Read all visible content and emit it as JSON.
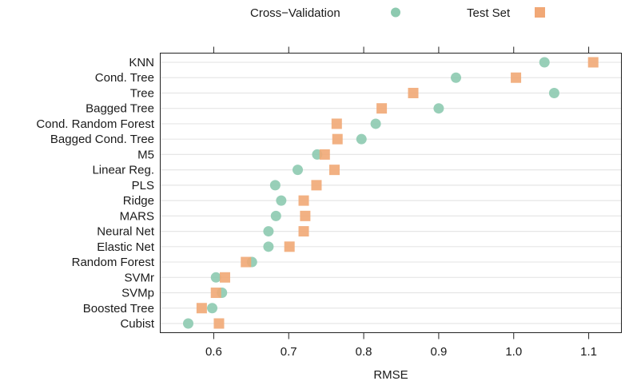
{
  "chart_data": {
    "type": "scatter",
    "title": "",
    "xlabel": "RMSE",
    "ylabel": "",
    "xlim": [
      0.5287,
      1.1436
    ],
    "xticks": [
      0.6,
      0.7,
      0.8,
      0.9,
      1.0,
      1.1
    ],
    "xtick_labels": [
      "0.6",
      "0.7",
      "0.8",
      "0.9",
      "1.0",
      "1.1"
    ],
    "grid": "horizontal",
    "legend_position": "top",
    "categories": [
      "KNN",
      "Cond. Tree",
      "Tree",
      "Bagged Tree",
      "Cond. Random Forest",
      "Bagged Cond. Tree",
      "M5",
      "Linear Reg.",
      "PLS",
      "Ridge",
      "MARS",
      "Neural Net",
      "Elastic Net",
      "Random Forest",
      "SVMr",
      "SVMp",
      "Boosted Tree",
      "Cubist"
    ],
    "series": [
      {
        "name": "Cross−Validation",
        "marker": "circle",
        "color": "#8dcab0",
        "values": [
          1.041,
          0.923,
          1.054,
          0.9,
          0.816,
          0.797,
          0.738,
          0.712,
          0.682,
          0.69,
          0.683,
          0.673,
          0.673,
          0.651,
          0.603,
          0.611,
          0.598,
          0.566
        ]
      },
      {
        "name": "Test Set",
        "marker": "square",
        "color": "#f1a876",
        "values": [
          1.106,
          1.003,
          0.866,
          0.824,
          0.764,
          0.765,
          0.748,
          0.761,
          0.737,
          0.72,
          0.722,
          0.72,
          0.701,
          0.643,
          0.615,
          0.603,
          0.584,
          0.607
        ]
      }
    ]
  }
}
